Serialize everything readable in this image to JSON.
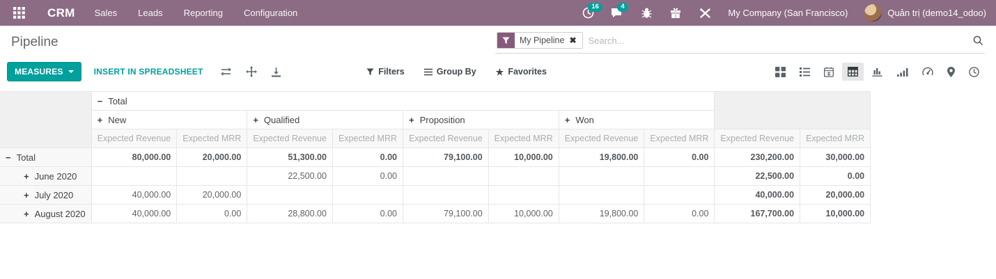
{
  "navbar": {
    "app_name": "CRM",
    "menus": [
      "Sales",
      "Leads",
      "Reporting",
      "Configuration"
    ],
    "activity_badge": "16",
    "message_badge": "4",
    "company": "My Company (San Francisco)",
    "user": "Quản trị (demo14_odoo)"
  },
  "control_panel": {
    "title": "Pipeline",
    "search_facet": "My Pipeline",
    "facet_remove": "✖",
    "search_placeholder": "Search...",
    "measures_label": "MEASURES",
    "insert_label": "INSERT IN SPREADSHEET",
    "filters_label": "Filters",
    "groupby_label": "Group By",
    "favorites_label": "Favorites"
  },
  "view_switcher": {
    "views": [
      "kanban",
      "list",
      "calendar",
      "pivot",
      "graph",
      "cohort",
      "dashboard",
      "map",
      "activity"
    ],
    "active": "pivot"
  },
  "chart_data": {
    "type": "table",
    "title": "Pipeline pivot: Expected Revenue / Expected MRR by stage and month",
    "col_root": "Total",
    "stages": [
      "New",
      "Qualified",
      "Proposition",
      "Won"
    ],
    "measures": [
      "Expected Revenue",
      "Expected MRR"
    ],
    "rows": [
      {
        "label": "Total",
        "expander": "−",
        "level": 0,
        "bold": true,
        "values": [
          "80,000.00",
          "20,000.00",
          "51,300.00",
          "0.00",
          "79,100.00",
          "10,000.00",
          "19,800.00",
          "0.00",
          "230,200.00",
          "30,000.00"
        ]
      },
      {
        "label": "June 2020",
        "expander": "+",
        "level": 1,
        "bold": false,
        "values": [
          "",
          "",
          "22,500.00",
          "0.00",
          "",
          "",
          "",
          "",
          "22,500.00",
          "0.00"
        ]
      },
      {
        "label": "July 2020",
        "expander": "+",
        "level": 1,
        "bold": false,
        "values": [
          "40,000.00",
          "20,000.00",
          "",
          "",
          "",
          "",
          "",
          "",
          "40,000.00",
          "20,000.00"
        ]
      },
      {
        "label": "August 2020",
        "expander": "+",
        "level": 1,
        "bold": false,
        "values": [
          "40,000.00",
          "0.00",
          "28,800.00",
          "0.00",
          "79,100.00",
          "10,000.00",
          "19,800.00",
          "0.00",
          "167,700.00",
          "10,000.00"
        ]
      }
    ]
  },
  "colors": {
    "navbar_bg": "#8c6b84",
    "accent_teal": "#00a09d",
    "facet_purple": "#875a7b",
    "table_border": "#e6e6e6"
  }
}
